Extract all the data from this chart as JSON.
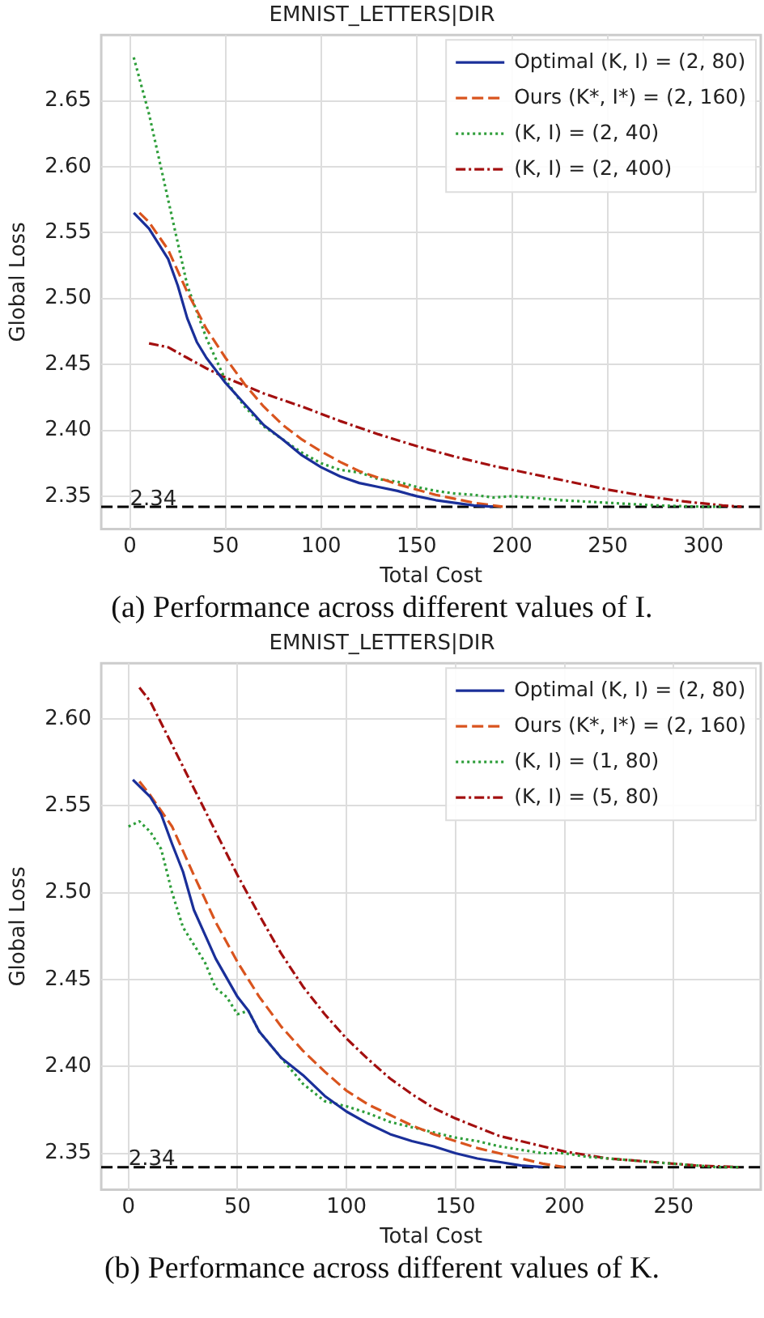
{
  "chart_data": [
    {
      "type": "line",
      "title": "EMNIST_LETTERS|DIR",
      "xlabel": "Total Cost",
      "ylabel": "Global Loss",
      "xlim": [
        -15,
        330
      ],
      "xticks": [
        0,
        50,
        100,
        150,
        200,
        250,
        300
      ],
      "ylim": [
        2.325,
        2.7
      ],
      "yticks": [
        2.35,
        {
          "value": 2.4,
          "label": "2.40"
        },
        2.45,
        {
          "value": 2.5,
          "label": "2.50"
        },
        2.55,
        {
          "value": 2.6,
          "label": "2.60"
        },
        2.65
      ],
      "grid": true,
      "legend": "top right",
      "marker": "none",
      "ref_lines": [
        {
          "axis": "y",
          "value": 2.342,
          "label": "2.34",
          "color": "#000000",
          "line_style": "dashed"
        }
      ],
      "annotations": [
        "(a) Performance across different values of I."
      ],
      "series": [
        {
          "name": "Optimal (K, I) = (2, 80)",
          "color": "#1a2f99",
          "line_style": "solid",
          "x": [
            2,
            10,
            20,
            25,
            30,
            35,
            40,
            50,
            60,
            70,
            80,
            90,
            100,
            110,
            120,
            130,
            140,
            150,
            160,
            170,
            180,
            190
          ],
          "values": [
            2.565,
            2.553,
            2.53,
            2.51,
            2.485,
            2.467,
            2.455,
            2.436,
            2.42,
            2.404,
            2.393,
            2.381,
            2.372,
            2.365,
            2.36,
            2.357,
            2.354,
            2.35,
            2.347,
            2.345,
            2.343,
            2.342
          ]
        },
        {
          "name": "Ours (K*, I*) = (2, 160)",
          "color": "#d9541e",
          "line_style": "dashed",
          "x": [
            5,
            10,
            20,
            30,
            40,
            50,
            60,
            70,
            80,
            90,
            100,
            110,
            120,
            130,
            140,
            150,
            160,
            170,
            180,
            190,
            195
          ],
          "values": [
            2.565,
            2.558,
            2.537,
            2.505,
            2.477,
            2.455,
            2.435,
            2.418,
            2.404,
            2.393,
            2.384,
            2.376,
            2.369,
            2.364,
            2.359,
            2.355,
            2.351,
            2.348,
            2.345,
            2.343,
            2.342
          ]
        },
        {
          "name": "(K, I) = (2, 40)",
          "color": "#2e9e3a",
          "line_style": "dotted",
          "x": [
            2,
            10,
            20,
            30,
            40,
            50,
            60,
            70,
            80,
            90,
            100,
            110,
            120,
            130,
            140,
            150,
            160,
            170,
            180,
            190,
            200,
            210,
            225,
            250,
            275,
            300,
            310
          ],
          "values": [
            2.683,
            2.64,
            2.575,
            2.51,
            2.47,
            2.438,
            2.418,
            2.403,
            2.393,
            2.383,
            2.375,
            2.37,
            2.368,
            2.363,
            2.361,
            2.357,
            2.354,
            2.352,
            2.351,
            2.349,
            2.35,
            2.349,
            2.347,
            2.345,
            2.343,
            2.342,
            2.342
          ]
        },
        {
          "name": "(K, I) = (2, 400)",
          "color": "#a30f0f",
          "line_style": "dashdot",
          "x": [
            10,
            20,
            30,
            40,
            50,
            70,
            90,
            110,
            130,
            150,
            170,
            190,
            210,
            230,
            250,
            270,
            290,
            310,
            320
          ],
          "values": [
            2.466,
            2.463,
            2.455,
            2.447,
            2.44,
            2.428,
            2.418,
            2.407,
            2.397,
            2.388,
            2.38,
            2.373,
            2.367,
            2.361,
            2.355,
            2.35,
            2.346,
            2.343,
            2.342
          ]
        }
      ]
    },
    {
      "type": "line",
      "title": "EMNIST_LETTERS|DIR",
      "xlabel": "Total Cost",
      "ylabel": "Global Loss",
      "xlim": [
        -12.5,
        290
      ],
      "xticks": [
        0,
        50,
        100,
        150,
        200,
        250
      ],
      "ylim": [
        2.329,
        2.632
      ],
      "yticks": [
        2.35,
        {
          "value": 2.4,
          "label": "2.40"
        },
        2.45,
        {
          "value": 2.5,
          "label": "2.50"
        },
        2.55,
        {
          "value": 2.6,
          "label": "2.60"
        }
      ],
      "grid": true,
      "legend": "top right",
      "marker": "none",
      "ref_lines": [
        {
          "axis": "y",
          "value": 2.342,
          "label": "2.34",
          "color": "#000000",
          "line_style": "dashed"
        }
      ],
      "annotations": [
        "(b) Performance across different values of K."
      ],
      "series": [
        {
          "name": "Optimal (K, I) = (2, 80)",
          "color": "#1a2f99",
          "line_style": "solid",
          "x": [
            2,
            10,
            15,
            20,
            25,
            30,
            40,
            50,
            55,
            60,
            70,
            80,
            90,
            100,
            110,
            120,
            130,
            140,
            150,
            160,
            170,
            180,
            190
          ],
          "values": [
            2.565,
            2.555,
            2.545,
            2.528,
            2.512,
            2.49,
            2.462,
            2.44,
            2.432,
            2.42,
            2.405,
            2.395,
            2.383,
            2.374,
            2.367,
            2.361,
            2.357,
            2.354,
            2.35,
            2.347,
            2.345,
            2.343,
            2.342
          ]
        },
        {
          "name": "Ours (K*, I*) = (2, 160)",
          "color": "#d9541e",
          "line_style": "dashed",
          "x": [
            5,
            10,
            20,
            30,
            40,
            50,
            60,
            70,
            80,
            90,
            100,
            110,
            120,
            130,
            140,
            150,
            160,
            170,
            180,
            190,
            200
          ],
          "values": [
            2.564,
            2.556,
            2.538,
            2.51,
            2.483,
            2.46,
            2.44,
            2.423,
            2.409,
            2.397,
            2.386,
            2.378,
            2.372,
            2.366,
            2.361,
            2.357,
            2.353,
            2.35,
            2.347,
            2.344,
            2.342
          ]
        },
        {
          "name": "(K, I) = (1, 80)",
          "color": "#2e9e3a",
          "line_style": "dotted",
          "x": [
            0,
            5,
            10,
            15,
            20,
            25,
            30,
            35,
            40,
            45,
            50,
            55,
            60,
            70,
            80,
            90,
            100,
            110,
            120,
            130,
            140,
            150,
            160,
            170,
            180,
            190,
            200,
            210,
            230,
            250,
            270,
            280
          ],
          "values": [
            2.538,
            2.541,
            2.535,
            2.525,
            2.5,
            2.48,
            2.47,
            2.46,
            2.445,
            2.44,
            2.43,
            2.432,
            2.42,
            2.405,
            2.39,
            2.38,
            2.377,
            2.373,
            2.368,
            2.365,
            2.362,
            2.359,
            2.357,
            2.354,
            2.352,
            2.35,
            2.35,
            2.348,
            2.346,
            2.344,
            2.342,
            2.342
          ]
        },
        {
          "name": "(K, I) = (5, 80)",
          "color": "#a30f0f",
          "line_style": "dashdot",
          "x": [
            5,
            10,
            20,
            30,
            40,
            50,
            60,
            70,
            80,
            90,
            100,
            110,
            120,
            130,
            140,
            150,
            160,
            170,
            180,
            190,
            200,
            210,
            220,
            240,
            260,
            280
          ],
          "values": [
            2.618,
            2.61,
            2.585,
            2.56,
            2.535,
            2.51,
            2.487,
            2.465,
            2.446,
            2.43,
            2.416,
            2.404,
            2.393,
            2.384,
            2.376,
            2.37,
            2.365,
            2.36,
            2.357,
            2.354,
            2.351,
            2.349,
            2.347,
            2.345,
            2.343,
            2.342
          ]
        }
      ]
    }
  ]
}
